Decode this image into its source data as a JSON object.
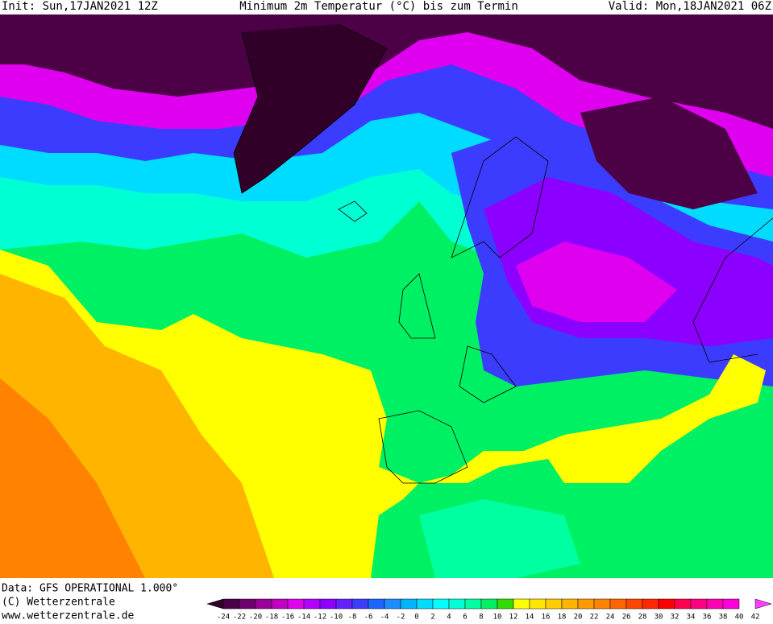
{
  "header": {
    "init": "Init: Sun,17JAN2021 12Z",
    "title": "Minimum 2m Temperatur (°C) bis zum Termin",
    "valid": "Valid: Mon,18JAN2021 06Z"
  },
  "footer": {
    "data": "Data: GFS OPERATIONAL 1.000°",
    "copyright": "(C) Wetterzentrale",
    "url": "www.wetterzentrale.de"
  },
  "colorbar": {
    "labels": [
      -24,
      -22,
      -20,
      -18,
      -16,
      -14,
      -12,
      -10,
      -8,
      -6,
      -4,
      -2,
      0,
      2,
      4,
      6,
      8,
      10,
      12,
      14,
      16,
      18,
      20,
      22,
      24,
      26,
      28,
      30,
      32,
      34,
      36,
      38,
      40,
      42
    ],
    "colors": [
      "#300028",
      "#4c0046",
      "#700070",
      "#9a009a",
      "#c000c0",
      "#e000f0",
      "#b400ff",
      "#8c00ff",
      "#6420ff",
      "#3c3cff",
      "#1e64ff",
      "#1e8cff",
      "#00b4ff",
      "#00dcff",
      "#00ffff",
      "#00ffd2",
      "#00ffa0",
      "#00f064",
      "#32dc00",
      "#ffff00",
      "#ffe600",
      "#ffcd00",
      "#ffb400",
      "#ff9b00",
      "#ff8200",
      "#ff6400",
      "#ff4600",
      "#ff2800",
      "#ff0000",
      "#ff0050",
      "#ff0080",
      "#ff00b4",
      "#ff00dc",
      "#ff40ff"
    ]
  }
}
